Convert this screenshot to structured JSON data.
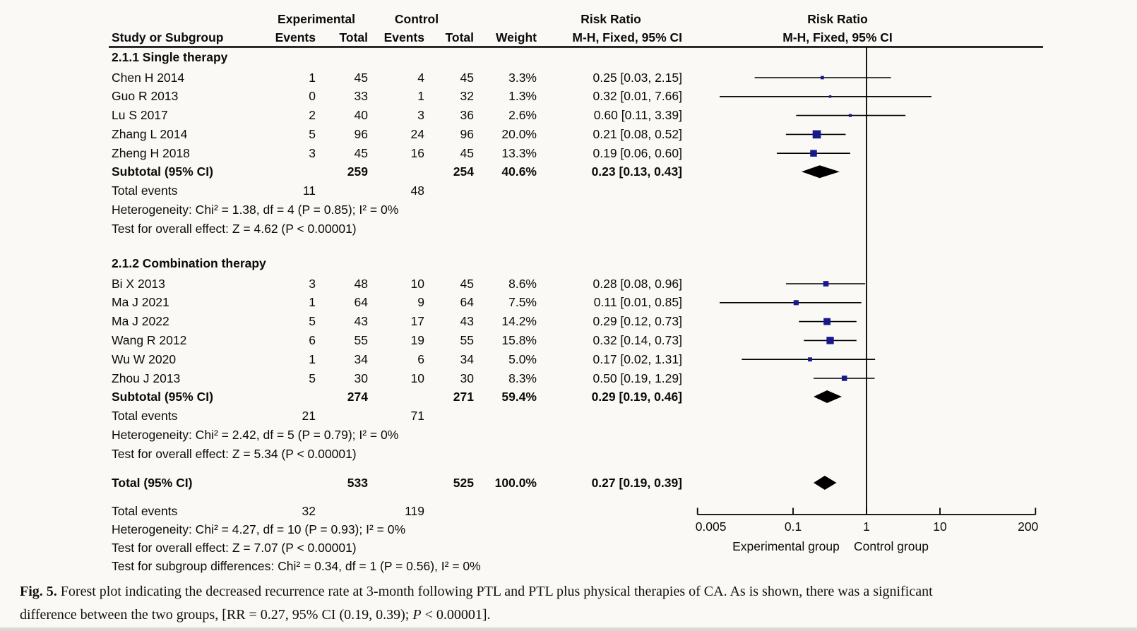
{
  "header": {
    "group_exp": "Experimental",
    "group_ctl": "Control",
    "group_rr": "Risk Ratio",
    "study": "Study or Subgroup",
    "events": "Events",
    "total": "Total",
    "weight": "Weight",
    "ci": "M-H, Fixed, 95% CI",
    "plot_title": "Risk Ratio",
    "plot_subtitle": "M-H, Fixed, 95% CI"
  },
  "colors": {
    "background": "#faf9f5",
    "text": "#0b0b0b",
    "marker": "#18188e",
    "diamond": "#000000",
    "axis": "#000000"
  },
  "chart_data": {
    "type": "forest_plot",
    "effect_measure": "Risk Ratio",
    "method": "M-H, Fixed, 95% CI",
    "x_scale": "log",
    "x_ticks": [
      0.005,
      0.1,
      1,
      10,
      200
    ],
    "x_range": [
      0.005,
      200
    ],
    "x_axis_label_left": "Experimental group",
    "x_axis_label_right": "Control group",
    "subgroups": [
      {
        "label": "2.1.1 Single therapy",
        "studies": [
          {
            "study": "Chen H 2014",
            "events_exp": "1",
            "total_exp": "45",
            "events_ctl": "4",
            "total_ctl": "45",
            "weight": "3.3%",
            "weight_value": 3.3,
            "rr": 0.25,
            "ci_low": 0.03,
            "ci_high": 2.15,
            "rr_text": "0.25 [0.03, 2.15]"
          },
          {
            "study": "Guo R 2013",
            "events_exp": "0",
            "total_exp": "33",
            "events_ctl": "1",
            "total_ctl": "32",
            "weight": "1.3%",
            "weight_value": 1.3,
            "rr": 0.32,
            "ci_low": 0.01,
            "ci_high": 7.66,
            "rr_text": "0.32 [0.01, 7.66]"
          },
          {
            "study": "Lu S 2017",
            "events_exp": "2",
            "total_exp": "40",
            "events_ctl": "3",
            "total_ctl": "36",
            "weight": "2.6%",
            "weight_value": 2.6,
            "rr": 0.6,
            "ci_low": 0.11,
            "ci_high": 3.39,
            "rr_text": "0.60 [0.11, 3.39]"
          },
          {
            "study": "Zhang L 2014",
            "events_exp": "5",
            "total_exp": "96",
            "events_ctl": "24",
            "total_ctl": "96",
            "weight": "20.0%",
            "weight_value": 20.0,
            "rr": 0.21,
            "ci_low": 0.08,
            "ci_high": 0.52,
            "rr_text": "0.21 [0.08, 0.52]"
          },
          {
            "study": "Zheng H 2018",
            "events_exp": "3",
            "total_exp": "45",
            "events_ctl": "16",
            "total_ctl": "45",
            "weight": "13.3%",
            "weight_value": 13.3,
            "rr": 0.19,
            "ci_low": 0.06,
            "ci_high": 0.6,
            "rr_text": "0.19 [0.06, 0.60]"
          }
        ],
        "subtotal": {
          "label": "Subtotal (95% CI)",
          "total_exp": "259",
          "total_ctl": "254",
          "weight": "40.6%",
          "rr": 0.23,
          "ci_low": 0.13,
          "ci_high": 0.43,
          "rr_text": "0.23 [0.13, 0.43]"
        },
        "total_events_label": "Total events",
        "total_events_exp": "11",
        "total_events_ctl": "48",
        "heterogeneity": "Heterogeneity: Chi² = 1.38, df = 4 (P = 0.85); I² = 0%",
        "overall_effect": "Test for overall effect: Z = 4.62 (P < 0.00001)"
      },
      {
        "label": "2.1.2 Combination therapy",
        "studies": [
          {
            "study": "Bi X 2013",
            "events_exp": "3",
            "total_exp": "48",
            "events_ctl": "10",
            "total_ctl": "45",
            "weight": "8.6%",
            "weight_value": 8.6,
            "rr": 0.28,
            "ci_low": 0.08,
            "ci_high": 0.96,
            "rr_text": "0.28 [0.08, 0.96]"
          },
          {
            "study": "Ma J 2021",
            "events_exp": "1",
            "total_exp": "64",
            "events_ctl": "9",
            "total_ctl": "64",
            "weight": "7.5%",
            "weight_value": 7.5,
            "rr": 0.11,
            "ci_low": 0.01,
            "ci_high": 0.85,
            "rr_text": "0.11 [0.01, 0.85]"
          },
          {
            "study": "Ma J 2022",
            "events_exp": "5",
            "total_exp": "43",
            "events_ctl": "17",
            "total_ctl": "43",
            "weight": "14.2%",
            "weight_value": 14.2,
            "rr": 0.29,
            "ci_low": 0.12,
            "ci_high": 0.73,
            "rr_text": "0.29 [0.12, 0.73]"
          },
          {
            "study": "Wang R 2012",
            "events_exp": "6",
            "total_exp": "55",
            "events_ctl": "19",
            "total_ctl": "55",
            "weight": "15.8%",
            "weight_value": 15.8,
            "rr": 0.32,
            "ci_low": 0.14,
            "ci_high": 0.73,
            "rr_text": "0.32 [0.14, 0.73]"
          },
          {
            "study": "Wu W 2020",
            "events_exp": "1",
            "total_exp": "34",
            "events_ctl": "6",
            "total_ctl": "34",
            "weight": "5.0%",
            "weight_value": 5.0,
            "rr": 0.17,
            "ci_low": 0.02,
            "ci_high": 1.31,
            "rr_text": "0.17 [0.02, 1.31]"
          },
          {
            "study": "Zhou J 2013",
            "events_exp": "5",
            "total_exp": "30",
            "events_ctl": "10",
            "total_ctl": "30",
            "weight": "8.3%",
            "weight_value": 8.3,
            "rr": 0.5,
            "ci_low": 0.19,
            "ci_high": 1.29,
            "rr_text": "0.50 [0.19, 1.29]"
          }
        ],
        "subtotal": {
          "label": "Subtotal (95% CI)",
          "total_exp": "274",
          "total_ctl": "271",
          "weight": "59.4%",
          "rr": 0.29,
          "ci_low": 0.19,
          "ci_high": 0.46,
          "rr_text": "0.29 [0.19, 0.46]"
        },
        "total_events_label": "Total events",
        "total_events_exp": "21",
        "total_events_ctl": "71",
        "heterogeneity": "Heterogeneity: Chi² = 2.42, df = 5 (P = 0.79); I² = 0%",
        "overall_effect": "Test for overall effect: Z = 5.34 (P < 0.00001)"
      }
    ],
    "total": {
      "label": "Total (95% CI)",
      "total_exp": "533",
      "total_ctl": "525",
      "weight": "100.0%",
      "rr": 0.27,
      "ci_low": 0.19,
      "ci_high": 0.39,
      "rr_text": "0.27 [0.19, 0.39]",
      "total_events_label": "Total events",
      "total_events_exp": "32",
      "total_events_ctl": "119",
      "heterogeneity": "Heterogeneity: Chi² = 4.27, df = 10 (P = 0.93); I² = 0%",
      "overall_effect": "Test for overall effect: Z = 7.07 (P < 0.00001)",
      "subgroup_differences": "Test for subgroup differences: Chi² = 0.34, df = 1 (P = 0.56), I² = 0%"
    }
  },
  "caption": {
    "fig_label": "Fig. 5.",
    "line1": "Forest plot indicating the decreased recurrence rate at 3-month following PTL and PTL plus physical therapies of CA. As is shown, there was a significant",
    "line2_pre": "difference between the two groups, [RR = 0.27, 95% CI (0.19, 0.39); ",
    "line2_p": "P",
    "line2_post": " < 0.00001]."
  }
}
